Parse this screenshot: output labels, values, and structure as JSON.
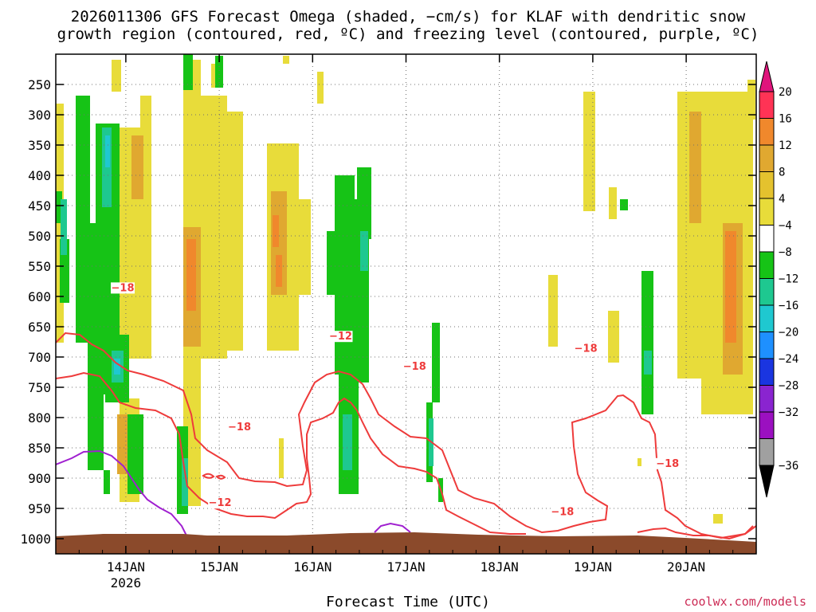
{
  "chart_data": {
    "type": "heatmap",
    "title_line1": "2026011306 GFS Forecast Omega (shaded, −cm/s) for KLAF with dendritic snow",
    "title_line2": "growth region (contoured, red, ºC) and freezing level (contoured, purple, ºC)",
    "xlabel": "Forecast Time (UTC)",
    "ylabel": "",
    "x_ticks": [
      {
        "label": "14JAN",
        "sub": "2026",
        "hour": 18
      },
      {
        "label": "15JAN",
        "sub": "",
        "hour": 42
      },
      {
        "label": "16JAN",
        "sub": "",
        "hour": 66
      },
      {
        "label": "17JAN",
        "sub": "",
        "hour": 90
      },
      {
        "label": "18JAN",
        "sub": "",
        "hour": 114
      },
      {
        "label": "19JAN",
        "sub": "",
        "hour": 138
      },
      {
        "label": "20JAN",
        "sub": "",
        "hour": 162
      }
    ],
    "x_range_hours": [
      0,
      180
    ],
    "y_ticks": [
      250,
      300,
      350,
      400,
      450,
      500,
      550,
      600,
      650,
      700,
      750,
      800,
      850,
      900,
      950,
      1000
    ],
    "y_range_hpa": [
      200,
      1025
    ],
    "grid": true,
    "colorbar": {
      "labels": [
        "20",
        "16",
        "12",
        "8",
        "4",
        "−4",
        "−8",
        "−12",
        "−16",
        "−20",
        "−24",
        "−28",
        "−32",
        "−36"
      ],
      "colors": [
        "#ff3355",
        "#f0882c",
        "#e0a830",
        "#e4c22e",
        "#e8dc3a",
        "#ffffff",
        "#16c316",
        "#1ec890",
        "#1fc8d0",
        "#1e90ff",
        "#1a35e0",
        "#8a24d0",
        "#9b10c0",
        "#a0a0a0"
      ],
      "top_arrow": "#e0147c",
      "bottom_arrow": "#000000"
    },
    "contour_labels": [
      {
        "text": "−18",
        "hour": 17,
        "hpa": 590
      },
      {
        "text": "−18",
        "hour": 47,
        "hpa": 820
      },
      {
        "text": "−12",
        "hour": 42,
        "hpa": 945
      },
      {
        "text": "−12",
        "hour": 73,
        "hpa": 670
      },
      {
        "text": "−18",
        "hour": 92,
        "hpa": 720
      },
      {
        "text": "−18",
        "hour": 136,
        "hpa": 690
      },
      {
        "text": "−18",
        "hour": 130,
        "hpa": 960
      },
      {
        "text": "−18",
        "hour": 157,
        "hpa": 880
      }
    ],
    "colors": {
      "dgz_contour": "#ee3b3b",
      "freezing_contour": "#a020d0",
      "ground": "#8b4a2b",
      "label": "#ee3b3b"
    }
  },
  "credit": "coolwx.com/models"
}
